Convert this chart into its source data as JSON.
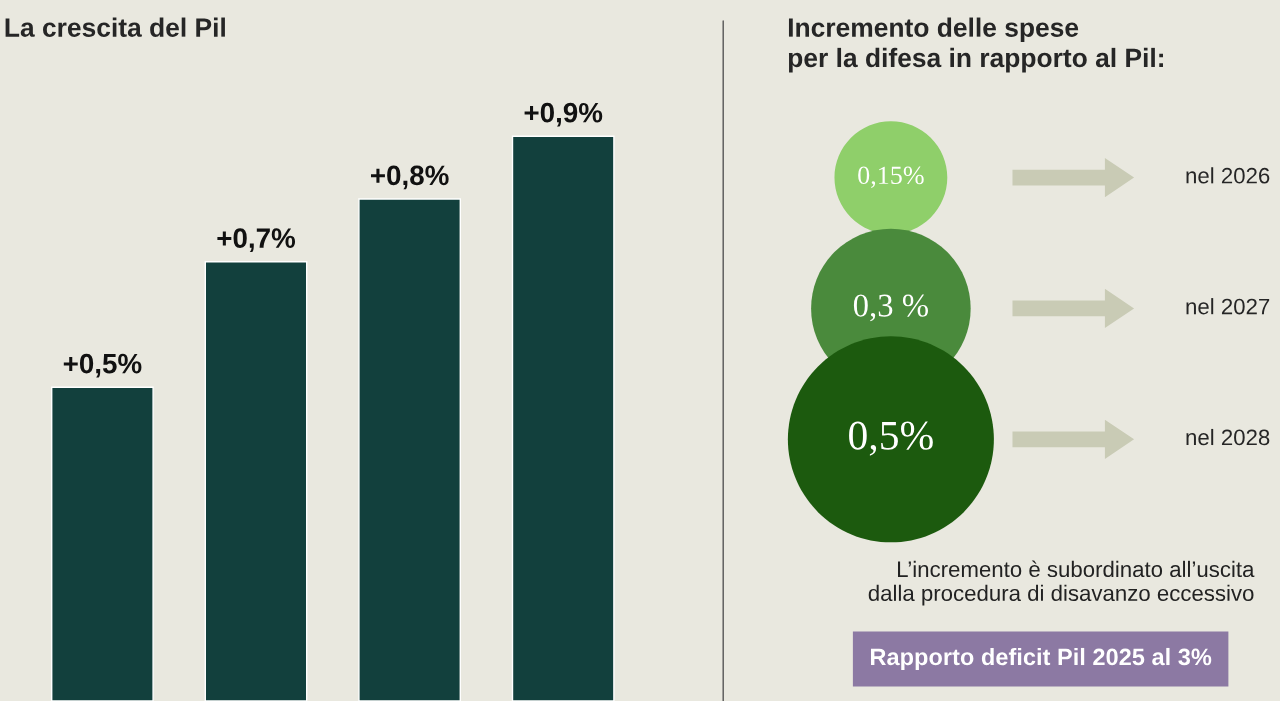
{
  "chart_data": [
    {
      "type": "bar",
      "title": "La crescita del Pil",
      "categories": [
        null,
        null,
        null,
        null
      ],
      "values": [
        0.5,
        0.7,
        0.8,
        0.9
      ],
      "value_labels": [
        "+0,5%",
        "+0,7%",
        "+0,8%",
        "+0,9%"
      ],
      "color": "#12403d"
    },
    {
      "type": "other",
      "title": "Incremento delle spese\nper la difesa in rapporto al Pil:",
      "categories": [
        "nel 2026",
        "nel 2027",
        "nel 2028"
      ],
      "values": [
        0.15,
        0.3,
        0.5
      ],
      "value_labels": [
        "0,15%",
        "0,3 %",
        "0,5%"
      ],
      "colors": [
        "#8fcf6a",
        "#4a8a3c",
        "#1c5a0e"
      ],
      "annotations": [
        "L’incremento è subordinato all’uscita\ndalla procedura di disavanzo eccessivo",
        "Rapporto deficit Pil 2025 al 3%"
      ]
    }
  ]
}
